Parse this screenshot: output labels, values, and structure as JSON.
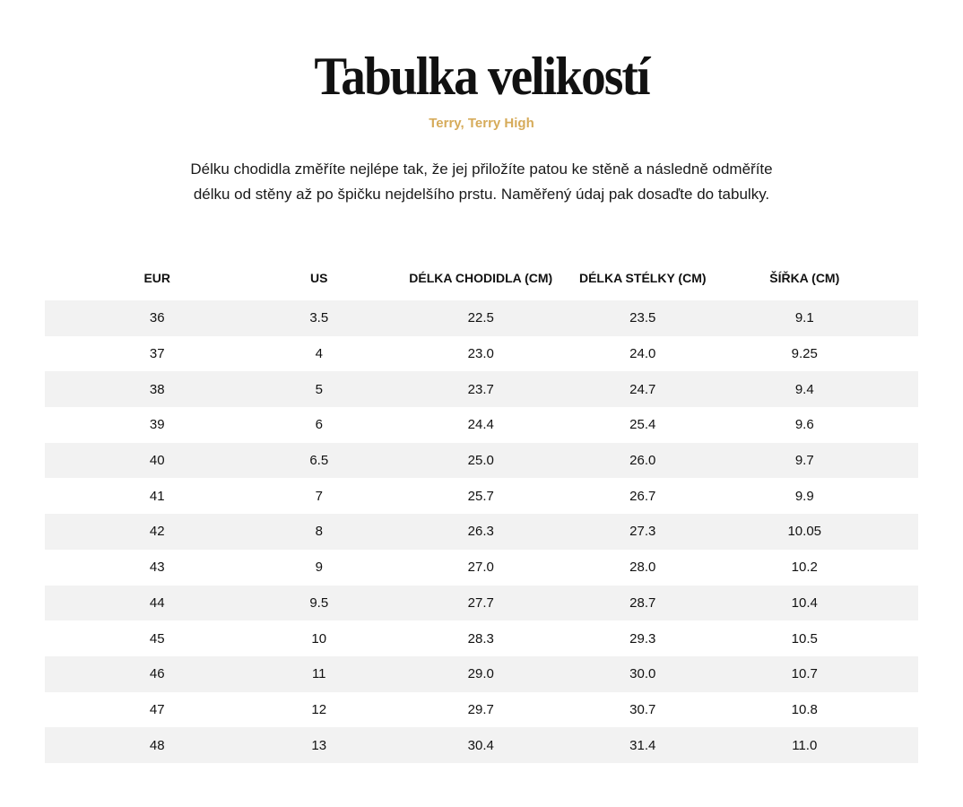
{
  "title": "Tabulka velikostí",
  "subtitle": "Terry, Terry High",
  "intro": [
    "Délku chodidla změříte nejlépe tak, že jej přiložíte patou ke stěně a následně odměříte",
    "délku od stěny až po špičku nejdelšího prstu. Naměřený údaj pak dosaďte do tabulky."
  ],
  "colors": {
    "accent": "#d6ab5a",
    "stripe": "#f2f2f2"
  },
  "table": {
    "headers": [
      "EUR",
      "US",
      "DÉLKA CHODIDLA  (CM)",
      "DÉLKA STÉLKY (CM)",
      "ŠÍŘKA (CM)"
    ],
    "rows": [
      [
        "36",
        "3.5",
        "22.5",
        "23.5",
        "9.1"
      ],
      [
        "37",
        "4",
        "23.0",
        "24.0",
        "9.25"
      ],
      [
        "38",
        "5",
        "23.7",
        "24.7",
        "9.4"
      ],
      [
        "39",
        "6",
        "24.4",
        "25.4",
        "9.6"
      ],
      [
        "40",
        "6.5",
        "25.0",
        "26.0",
        "9.7"
      ],
      [
        "41",
        "7",
        "25.7",
        "26.7",
        "9.9"
      ],
      [
        "42",
        "8",
        "26.3",
        "27.3",
        "10.05"
      ],
      [
        "43",
        "9",
        "27.0",
        "28.0",
        "10.2"
      ],
      [
        "44",
        "9.5",
        "27.7",
        "28.7",
        "10.4"
      ],
      [
        "45",
        "10",
        "28.3",
        "29.3",
        "10.5"
      ],
      [
        "46",
        "11",
        "29.0",
        "30.0",
        "10.7"
      ],
      [
        "47",
        "12",
        "29.7",
        "30.7",
        "10.8"
      ],
      [
        "48",
        "13",
        "30.4",
        "31.4",
        "11.0"
      ]
    ]
  }
}
